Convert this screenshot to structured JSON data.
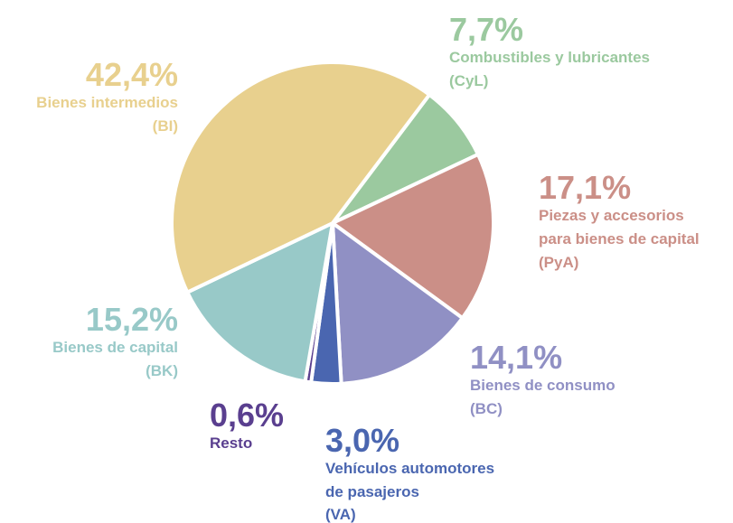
{
  "chart_data": {
    "type": "pie",
    "categories": [
      [
        "Combustibles y lubricantes",
        "(CyL)"
      ],
      [
        "Piezas y accesorios",
        "para bienes de capital",
        "(PyA)"
      ],
      [
        "Bienes de consumo",
        "(BC)"
      ],
      [
        "Vehículos automotores",
        "de pasajeros",
        "(VA)"
      ],
      [
        "Resto"
      ],
      [
        "Bienes de capital",
        "(BK)"
      ],
      [
        "Bienes intermedios",
        "(BI)"
      ]
    ],
    "values": [
      7.7,
      17.1,
      14.1,
      3.0,
      0.6,
      15.2,
      42.4
    ],
    "value_labels": [
      "7,7%",
      "17,1%",
      "14,1%",
      "3,0%",
      "0,6%",
      "15,2%",
      "42,4%"
    ],
    "colors": [
      "#9bc99f",
      "#cb8f87",
      "#9090c4",
      "#4a66b0",
      "#5a3f8f",
      "#98c9c8",
      "#e8d08e"
    ]
  }
}
